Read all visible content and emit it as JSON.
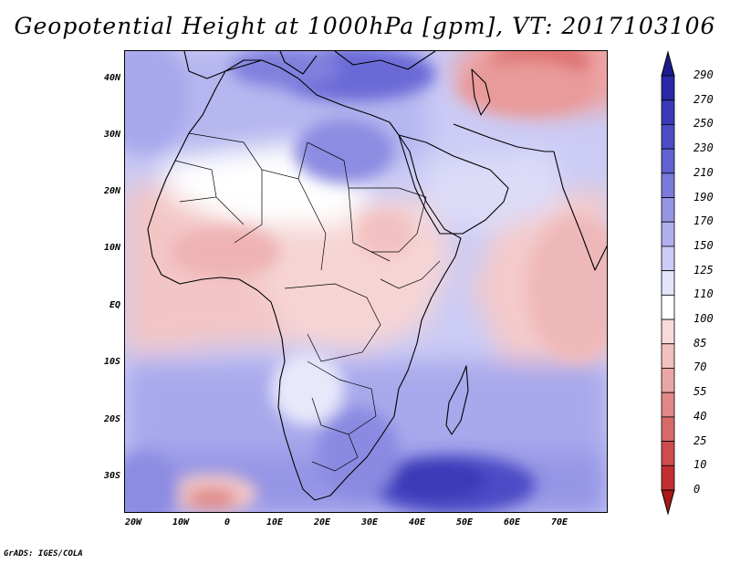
{
  "title": "Geopotential Height at 1000hPa [gpm], VT: 2017103106",
  "credit": "GrADS: IGES/COLA",
  "axes": {
    "lat_labels": [
      "40N",
      "30N",
      "20N",
      "10N",
      "EQ",
      "10S",
      "20S",
      "30S"
    ],
    "lon_labels": [
      "20W",
      "10W",
      "0",
      "10E",
      "20E",
      "30E",
      "40E",
      "50E",
      "60E",
      "70E"
    ]
  },
  "colorbar": {
    "labels": [
      "290",
      "270",
      "250",
      "230",
      "210",
      "190",
      "170",
      "150",
      "125",
      "110",
      "100",
      "85",
      "70",
      "55",
      "40",
      "25",
      "10",
      "0"
    ],
    "colors": [
      "#1b1b8f",
      "#2828a8",
      "#3a3ab8",
      "#4c4cc6",
      "#6161d2",
      "#7a7add",
      "#9595e6",
      "#b0b0ee",
      "#cbcbf5",
      "#e4e4fb",
      "#ffffff",
      "#f8dada",
      "#f2c0c0",
      "#eaa6a6",
      "#e28888",
      "#d86a6a",
      "#cf4c4c",
      "#c23030",
      "#a81818"
    ]
  },
  "map_data": {
    "variable": "Geopotential Height at 1000hPa",
    "units": "gpm",
    "valid_time": "2017103106",
    "domain": "Africa and surrounding oceans",
    "features": [
      {
        "name": "Eastern Mediterranean / Turkey",
        "level": "high (190-210)"
      },
      {
        "name": "Southwest Russia",
        "level": "low (10-40)"
      },
      {
        "name": "Southern Indian Ocean high",
        "level": "high (230-250)"
      },
      {
        "name": "South Atlantic low",
        "level": "low (10-40)"
      }
    ]
  }
}
